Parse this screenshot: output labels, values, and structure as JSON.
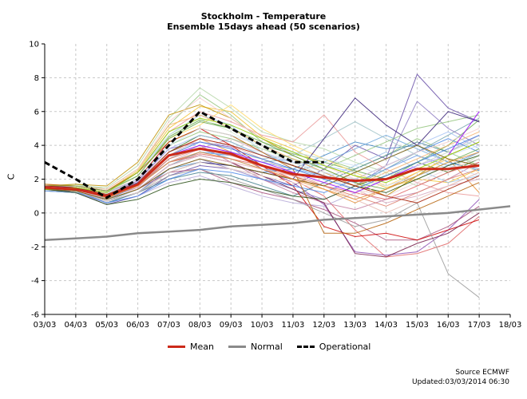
{
  "chart_data": {
    "type": "line",
    "title": "Stockholm - Temperature",
    "subtitle": "Ensemble 15days ahead (50 scenarios)",
    "ylabel": "C",
    "xlabel": "",
    "categories": [
      "03/03",
      "04/03",
      "05/03",
      "06/03",
      "07/03",
      "08/03",
      "09/03",
      "10/03",
      "11/03",
      "12/03",
      "13/03",
      "14/03",
      "15/03",
      "16/03",
      "17/03",
      "18/03"
    ],
    "ylim": [
      -6,
      10
    ],
    "yticks": [
      -6,
      -4,
      -2,
      0,
      2,
      4,
      6,
      8,
      10
    ],
    "grid": true,
    "legend_position": "bottom",
    "series": [
      {
        "name": "Mean",
        "color": "#cc2a1a",
        "style": "solid",
        "x": [
          0,
          1,
          2,
          3,
          4,
          5,
          6,
          7,
          8,
          9,
          10,
          11,
          12,
          13,
          14
        ],
        "values": [
          1.5,
          1.4,
          1.0,
          1.7,
          3.4,
          3.8,
          3.5,
          2.8,
          2.3,
          2.1,
          1.9,
          2.0,
          2.6,
          2.6,
          2.8
        ]
      },
      {
        "name": "Normal",
        "color": "#8a8a8a",
        "style": "solid",
        "x": [
          0,
          1,
          2,
          3,
          4,
          5,
          6,
          7,
          8,
          9,
          10,
          11,
          12,
          13,
          14,
          15
        ],
        "values": [
          -1.6,
          -1.5,
          -1.4,
          -1.2,
          -1.1,
          -1.0,
          -0.8,
          -0.7,
          -0.6,
          -0.4,
          -0.3,
          -0.2,
          -0.1,
          0.0,
          0.2,
          0.4
        ]
      },
      {
        "name": "Operational",
        "color": "#000000",
        "style": "dashed",
        "x": [
          0,
          1,
          2,
          3,
          4,
          5,
          6,
          7,
          8,
          9
        ],
        "values": [
          3.0,
          2.0,
          0.9,
          2.0,
          4.0,
          6.0,
          5.0,
          4.0,
          3.0,
          3.0
        ]
      }
    ],
    "ensemble": {
      "count": 50,
      "members": [
        {
          "color": "#e06666",
          "values": [
            1.5,
            1.3,
            0.8,
            1.6,
            3.0,
            3.5,
            3.2,
            2.8,
            2.0,
            1.0,
            -1.0,
            -2.6,
            -2.4,
            -1.8,
            -0.2
          ]
        },
        {
          "color": "#8e4fb5",
          "values": [
            1.6,
            1.4,
            1.1,
            1.9,
            3.8,
            4.2,
            3.9,
            2.6,
            1.8,
            0.5,
            -2.3,
            -2.5,
            -2.3,
            -1.0,
            0.8
          ]
        },
        {
          "color": "#6aa84f",
          "values": [
            1.4,
            1.5,
            1.2,
            2.2,
            4.5,
            5.5,
            5.0,
            4.0,
            3.5,
            3.0,
            2.5,
            2.0,
            3.0,
            4.0,
            5.5
          ]
        },
        {
          "color": "#3d85c6",
          "values": [
            1.3,
            1.2,
            0.6,
            1.2,
            2.6,
            3.0,
            2.8,
            2.4,
            2.6,
            3.4,
            4.2,
            3.8,
            4.0,
            3.0,
            2.5
          ]
        },
        {
          "color": "#f1c232",
          "values": [
            1.7,
            1.6,
            1.3,
            2.5,
            5.0,
            6.3,
            6.0,
            4.5,
            3.8,
            2.8,
            2.2,
            1.5,
            2.0,
            1.8,
            2.6
          ]
        },
        {
          "color": "#c27ba0",
          "values": [
            1.5,
            1.4,
            0.9,
            1.5,
            3.2,
            4.0,
            3.0,
            2.0,
            1.2,
            0.6,
            0.2,
            0.8,
            1.2,
            2.0,
            3.0
          ]
        },
        {
          "color": "#76a5af",
          "values": [
            1.4,
            1.3,
            0.7,
            1.4,
            2.8,
            3.6,
            3.4,
            3.0,
            3.2,
            2.4,
            1.6,
            2.6,
            3.6,
            4.6,
            5.6
          ]
        },
        {
          "color": "#93c47d",
          "values": [
            1.6,
            1.7,
            1.4,
            2.6,
            5.2,
            7.0,
            5.8,
            4.2,
            3.6,
            3.2,
            2.6,
            3.4,
            4.4,
            3.6,
            2.8
          ]
        },
        {
          "color": "#674ea7",
          "values": [
            1.5,
            1.2,
            0.5,
            1.0,
            2.2,
            2.8,
            2.6,
            2.2,
            1.6,
            2.6,
            4.0,
            3.2,
            8.2,
            6.2,
            5.4
          ]
        },
        {
          "color": "#e69138",
          "values": [
            1.3,
            1.2,
            0.8,
            1.8,
            3.6,
            4.4,
            3.6,
            2.6,
            2.2,
            1.4,
            0.6,
            1.4,
            2.4,
            3.2,
            1.2
          ]
        },
        {
          "color": "#a64d79",
          "values": [
            1.6,
            1.4,
            0.8,
            1.4,
            2.4,
            2.6,
            1.8,
            1.2,
            0.8,
            0.2,
            -0.6,
            -1.6,
            -1.6,
            -0.8,
            0.4
          ]
        },
        {
          "color": "#9fc5e8",
          "values": [
            1.4,
            1.5,
            1.2,
            2.4,
            4.6,
            5.8,
            5.2,
            3.6,
            2.8,
            2.0,
            2.8,
            3.6,
            2.6,
            1.8,
            2.2
          ]
        },
        {
          "color": "#b6d7a8",
          "values": [
            1.5,
            1.6,
            1.5,
            2.8,
            5.6,
            7.4,
            6.2,
            4.8,
            4.2,
            3.8,
            3.0,
            2.4,
            1.6,
            2.4,
            3.4
          ]
        },
        {
          "color": "#d5a6bd",
          "values": [
            1.7,
            1.5,
            1.0,
            1.6,
            3.0,
            3.8,
            4.4,
            3.6,
            3.0,
            2.2,
            1.4,
            0.6,
            1.0,
            1.6,
            2.0
          ]
        },
        {
          "color": "#45818e",
          "values": [
            1.4,
            1.3,
            0.6,
            1.2,
            2.0,
            2.4,
            2.2,
            1.6,
            1.0,
            1.8,
            2.6,
            3.4,
            4.2,
            3.6,
            4.4
          ]
        },
        {
          "color": "#cc0000",
          "values": [
            1.5,
            1.5,
            1.2,
            2.0,
            4.2,
            5.0,
            4.0,
            2.8,
            1.6,
            -0.8,
            -1.4,
            -1.2,
            -1.6,
            -1.0,
            -0.4
          ]
        },
        {
          "color": "#6fa8dc",
          "values": [
            1.3,
            1.2,
            0.9,
            1.8,
            3.4,
            3.8,
            3.2,
            2.6,
            2.4,
            3.0,
            3.8,
            4.6,
            3.8,
            3.0,
            2.6
          ]
        },
        {
          "color": "#bf9000",
          "values": [
            1.6,
            1.7,
            1.6,
            3.0,
            5.8,
            6.4,
            5.6,
            4.4,
            3.4,
            2.6,
            1.8,
            1.0,
            2.2,
            3.4,
            4.2
          ]
        },
        {
          "color": "#8e7cc3",
          "values": [
            1.5,
            1.4,
            0.8,
            1.4,
            2.6,
            3.2,
            2.6,
            2.0,
            1.4,
            0.8,
            1.6,
            2.8,
            6.6,
            5.0,
            4.0
          ]
        },
        {
          "color": "#999999",
          "values": [
            1.4,
            1.3,
            0.7,
            1.2,
            2.2,
            2.6,
            2.0,
            1.4,
            0.8,
            0.0,
            -0.8,
            -0.4,
            0.6,
            -3.6,
            -5.0
          ]
        },
        {
          "color": "#38761d",
          "values": [
            1.6,
            1.5,
            1.0,
            1.8,
            3.6,
            4.6,
            4.2,
            3.4,
            2.8,
            2.2,
            1.6,
            2.2,
            3.0,
            2.4,
            3.2
          ]
        },
        {
          "color": "#ea9999",
          "values": [
            1.5,
            1.6,
            1.3,
            2.4,
            4.8,
            6.0,
            5.4,
            4.6,
            4.2,
            5.8,
            3.6,
            2.6,
            1.8,
            1.2,
            1.0
          ]
        },
        {
          "color": "#b4a7d6",
          "values": [
            1.4,
            1.2,
            0.6,
            1.0,
            1.8,
            2.2,
            1.6,
            1.0,
            0.6,
            0.4,
            1.2,
            2.0,
            2.8,
            3.6,
            4.6
          ]
        },
        {
          "color": "#ffd966",
          "values": [
            1.7,
            1.6,
            1.2,
            2.2,
            4.4,
            5.2,
            6.4,
            5.0,
            4.0,
            3.2,
            2.4,
            1.6,
            2.4,
            3.2,
            2.4
          ]
        },
        {
          "color": "#a2c4c9",
          "values": [
            1.5,
            1.4,
            1.0,
            1.6,
            3.2,
            4.0,
            3.6,
            3.2,
            3.4,
            4.4,
            5.4,
            4.4,
            3.4,
            2.6,
            3.6
          ]
        },
        {
          "color": "#e06666",
          "values": [
            1.6,
            1.4,
            0.9,
            1.6,
            3.0,
            3.4,
            3.0,
            2.6,
            2.0,
            1.6,
            1.2,
            0.8,
            1.6,
            2.4,
            3.0
          ]
        },
        {
          "color": "#741b47",
          "values": [
            1.4,
            1.3,
            0.8,
            1.4,
            2.8,
            3.4,
            3.0,
            2.2,
            1.4,
            0.6,
            -2.4,
            -2.6,
            -1.8,
            -1.2,
            0.0
          ]
        },
        {
          "color": "#93c47d",
          "values": [
            1.5,
            1.5,
            1.1,
            2.0,
            4.0,
            4.8,
            4.4,
            3.8,
            3.2,
            2.6,
            3.4,
            4.2,
            5.0,
            5.4,
            5.8
          ]
        },
        {
          "color": "#6d9eeb",
          "values": [
            1.3,
            1.2,
            0.8,
            1.6,
            3.0,
            3.6,
            3.4,
            3.0,
            2.6,
            2.2,
            1.8,
            2.6,
            3.4,
            2.8,
            3.6
          ]
        },
        {
          "color": "#f6b26b",
          "values": [
            1.6,
            1.6,
            1.4,
            2.6,
            5.2,
            5.8,
            5.0,
            4.0,
            3.2,
            2.4,
            1.6,
            2.4,
            3.2,
            4.0,
            4.8
          ]
        },
        {
          "color": "#c9daf8",
          "values": [
            1.5,
            1.4,
            0.9,
            1.8,
            3.6,
            4.2,
            4.0,
            3.6,
            3.0,
            2.4,
            2.0,
            1.6,
            2.2,
            2.8,
            2.2
          ]
        },
        {
          "color": "#351c75",
          "values": [
            1.4,
            1.3,
            0.7,
            1.2,
            2.4,
            3.0,
            2.8,
            2.4,
            2.0,
            4.4,
            6.8,
            5.2,
            4.0,
            6.0,
            5.4
          ]
        },
        {
          "color": "#d9ead3",
          "values": [
            1.6,
            1.5,
            1.2,
            2.2,
            4.6,
            5.6,
            4.8,
            3.8,
            3.0,
            2.2,
            1.4,
            2.0,
            2.8,
            3.6,
            4.4
          ]
        },
        {
          "color": "#e6b8af",
          "values": [
            1.5,
            1.4,
            1.0,
            1.6,
            3.4,
            4.4,
            4.0,
            3.2,
            2.4,
            1.6,
            0.8,
            0.0,
            0.8,
            1.6,
            2.4
          ]
        },
        {
          "color": "#4a86e8",
          "values": [
            1.4,
            1.3,
            0.6,
            1.0,
            2.0,
            2.6,
            2.4,
            2.0,
            1.6,
            1.2,
            2.0,
            2.8,
            3.6,
            4.4,
            3.6
          ]
        },
        {
          "color": "#b45f06",
          "values": [
            1.7,
            1.6,
            1.3,
            2.4,
            4.2,
            5.0,
            4.6,
            3.6,
            2.6,
            -1.2,
            -1.2,
            -0.6,
            0.2,
            1.0,
            1.8
          ]
        },
        {
          "color": "#a4c2f4",
          "values": [
            1.5,
            1.5,
            1.2,
            2.0,
            3.8,
            4.6,
            4.2,
            3.4,
            3.0,
            2.8,
            2.4,
            3.2,
            4.0,
            4.8,
            3.8
          ]
        },
        {
          "color": "#ead1dc",
          "values": [
            1.6,
            1.4,
            0.8,
            1.4,
            2.8,
            3.4,
            3.0,
            2.6,
            2.2,
            1.8,
            1.4,
            1.0,
            1.8,
            2.6,
            3.2
          ]
        },
        {
          "color": "#274e13",
          "values": [
            1.4,
            1.2,
            0.5,
            0.8,
            1.6,
            2.0,
            1.8,
            1.4,
            1.0,
            0.8,
            1.6,
            1.2,
            2.0,
            2.8,
            3.4
          ]
        },
        {
          "color": "#f4cccc",
          "values": [
            1.5,
            1.6,
            1.4,
            2.6,
            5.4,
            6.8,
            5.6,
            4.4,
            3.6,
            2.8,
            2.0,
            2.8,
            3.6,
            4.2,
            5.0
          ]
        },
        {
          "color": "#9900ff",
          "values": [
            1.6,
            1.5,
            1.0,
            1.8,
            3.4,
            4.0,
            3.6,
            3.0,
            2.4,
            1.8,
            1.2,
            2.0,
            2.8,
            3.4,
            6.0
          ]
        },
        {
          "color": "#cfe2f3",
          "values": [
            1.4,
            1.4,
            1.1,
            2.0,
            4.0,
            5.0,
            4.6,
            4.0,
            3.6,
            3.2,
            2.8,
            2.2,
            2.8,
            3.4,
            4.0
          ]
        },
        {
          "color": "#fce5cd",
          "values": [
            1.5,
            1.3,
            0.7,
            1.2,
            2.4,
            3.0,
            2.6,
            2.2,
            1.8,
            1.4,
            1.0,
            1.8,
            2.6,
            3.2,
            2.4
          ]
        },
        {
          "color": "#6aa84f",
          "values": [
            1.6,
            1.6,
            1.3,
            2.2,
            4.4,
            5.4,
            5.0,
            4.2,
            3.4,
            2.6,
            1.8,
            1.4,
            2.2,
            3.0,
            3.8
          ]
        },
        {
          "color": "#dd7e6b",
          "values": [
            1.5,
            1.4,
            0.9,
            1.6,
            3.2,
            3.8,
            3.4,
            2.8,
            2.2,
            1.6,
            1.0,
            0.4,
            1.2,
            2.0,
            2.6
          ]
        },
        {
          "color": "#7f6000",
          "values": [
            1.4,
            1.3,
            0.8,
            1.4,
            2.6,
            3.2,
            2.8,
            2.4,
            2.0,
            1.6,
            2.4,
            3.2,
            4.0,
            3.2,
            2.8
          ]
        },
        {
          "color": "#a61c00",
          "values": [
            1.6,
            1.5,
            1.1,
            1.8,
            3.6,
            4.4,
            4.0,
            3.4,
            2.8,
            2.2,
            1.6,
            1.0,
            0.6,
            1.4,
            2.2
          ]
        },
        {
          "color": "#3c78d8",
          "values": [
            1.5,
            1.4,
            1.0,
            1.8,
            3.4,
            4.2,
            3.8,
            3.2,
            2.6,
            2.0,
            1.4,
            2.2,
            3.0,
            3.8,
            4.6
          ]
        },
        {
          "color": "#8fce00",
          "values": [
            1.4,
            1.5,
            1.2,
            2.4,
            4.8,
            5.6,
            5.2,
            4.4,
            3.6,
            2.8,
            2.2,
            1.8,
            2.6,
            3.4,
            4.2
          ]
        },
        {
          "color": "#e69138",
          "values": [
            1.5,
            1.4,
            0.9,
            1.6,
            3.0,
            3.6,
            3.2,
            2.6,
            2.0,
            1.4,
            0.8,
            1.4,
            2.2,
            3.0,
            3.6
          ]
        }
      ]
    }
  },
  "source": {
    "line1": "Source ECMWF",
    "line2": "Updated:03/03/2014 06:30"
  }
}
